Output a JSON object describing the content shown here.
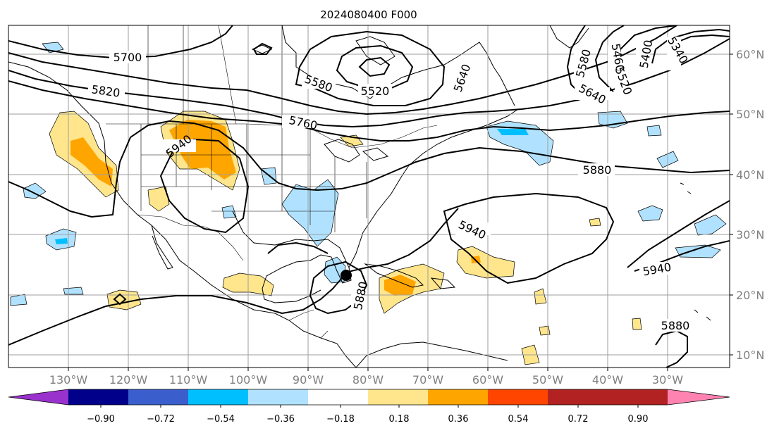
{
  "title": "2024080400 F000",
  "map": {
    "lat_labels": [
      "60°N",
      "50°N",
      "40°N",
      "30°N",
      "20°N",
      "10°N"
    ],
    "lon_labels": [
      "130°W",
      "120°W",
      "110°W",
      "100°W",
      "90°W",
      "80°W",
      "70°W",
      "60°W",
      "50°W",
      "40°W",
      "30°W"
    ],
    "contour_labels": [
      "5700",
      "5820",
      "5580",
      "5520",
      "5640",
      "5760",
      "5940",
      "5880",
      "5940",
      "5880",
      "5940",
      "5880",
      "5580",
      "5460",
      "5400",
      "5340",
      "5520",
      "5640"
    ],
    "marker": "storm-center-dot"
  },
  "colorbar": {
    "colors": [
      "#9932cc",
      "#00008b",
      "#3a5fcd",
      "#00bfff",
      "#b0e2ff",
      "#ffffff",
      "#ffe68c",
      "#ffa500",
      "#ff4500",
      "#b22222",
      "#ff83b1"
    ],
    "tick_labels": [
      "−0.90",
      "−0.72",
      "−0.54",
      "−0.36",
      "−0.18",
      "0.18",
      "0.36",
      "0.54",
      "0.72",
      "0.90"
    ]
  },
  "colors": {
    "contour": "#000000",
    "grid": "#9e9e9e",
    "coast": "#000000"
  }
}
